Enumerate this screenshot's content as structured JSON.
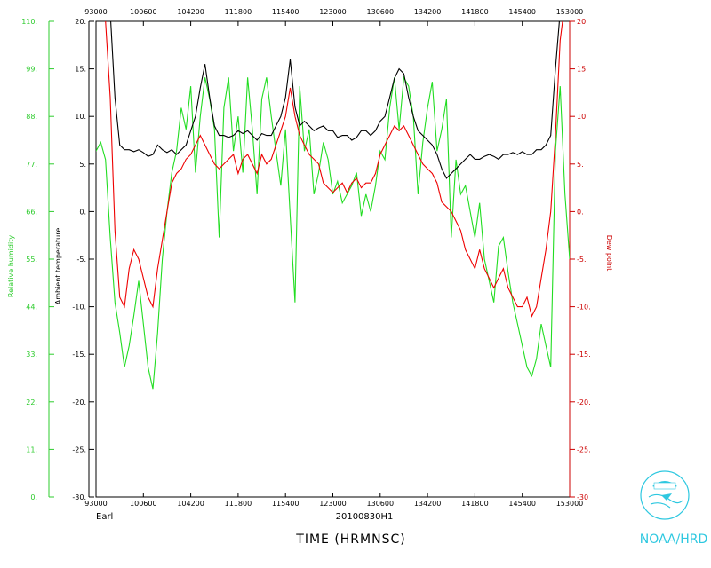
{
  "chart_data": {
    "type": "line",
    "x_axis": {
      "label": "TIME (HRMNSC)",
      "tick_labels": [
        "93000",
        "100600",
        "104200",
        "111800",
        "115400",
        "123000",
        "130600",
        "134200",
        "141800",
        "145400",
        "153000"
      ]
    },
    "y_axes": {
      "relative_humidity": {
        "label": "Relative humidity",
        "color": "#2ecc2e",
        "ylim": [
          0,
          110
        ],
        "tick_labels": [
          "0.",
          "11.",
          "22.",
          "33.",
          "44.",
          "55.",
          "66.",
          "77.",
          "88.",
          "99.",
          "110."
        ]
      },
      "ambient_temperature": {
        "label": "Ambient temperature",
        "color": "#000000",
        "ylim": [
          -30,
          20
        ],
        "tick_labels": [
          "-30.",
          "-25.",
          "-20.",
          "-15.",
          "-10.",
          "-5.",
          "0.",
          "5.",
          "10.",
          "15.",
          "20."
        ]
      },
      "dew_point": {
        "label": "Dew point",
        "color": "#cc0000",
        "ylim": [
          -30,
          20
        ],
        "tick_labels": [
          "-30",
          "-25.",
          "-20.",
          "-15.",
          "-10.",
          "-5.",
          "0.",
          "5.",
          "10.",
          "15.",
          "20."
        ]
      }
    },
    "series": [
      {
        "name": "Relative humidity",
        "color": "#22dd22",
        "axis": "relative_humidity",
        "x": [
          0,
          1,
          2,
          3,
          4,
          5,
          6,
          7,
          8,
          9,
          10,
          11,
          12,
          13,
          14,
          15,
          16,
          17,
          18,
          19,
          20,
          21,
          22,
          23,
          24,
          25,
          26,
          27,
          28,
          29,
          30,
          31,
          32,
          33,
          34,
          35,
          36,
          37,
          38,
          39,
          40,
          41,
          42,
          43,
          44,
          45,
          46,
          47,
          48,
          49,
          50,
          51,
          52,
          53,
          54,
          55,
          56,
          57,
          58,
          59,
          60,
          61,
          62,
          63,
          64,
          65,
          66,
          67,
          68,
          69,
          70,
          71,
          72,
          73,
          74,
          75,
          76,
          77,
          78,
          79,
          80,
          81,
          82,
          83,
          84,
          85,
          86,
          87,
          88,
          89,
          90,
          91,
          92,
          93,
          94,
          95,
          96,
          97,
          98,
          99,
          100
        ],
        "values": [
          80,
          82,
          78,
          60,
          45,
          38,
          30,
          35,
          42,
          50,
          40,
          30,
          25,
          38,
          55,
          66,
          75,
          80,
          90,
          85,
          95,
          75,
          88,
          97,
          92,
          85,
          60,
          90,
          97,
          80,
          88,
          75,
          97,
          85,
          70,
          92,
          97,
          88,
          80,
          72,
          85,
          65,
          45,
          95,
          80,
          85,
          70,
          75,
          82,
          78,
          70,
          73,
          68,
          70,
          72,
          75,
          65,
          70,
          66,
          72,
          80,
          78,
          90,
          97,
          85,
          97,
          95,
          88,
          70,
          82,
          90,
          96,
          80,
          85,
          92,
          60,
          78,
          70,
          72,
          66,
          60,
          68,
          55,
          50,
          45,
          58,
          60,
          52,
          45,
          40,
          35,
          30,
          28,
          32,
          40,
          35,
          30,
          80,
          95,
          70,
          55
        ]
      },
      {
        "name": "Ambient temperature",
        "color": "#000000",
        "axis": "ambient_temperature",
        "x": [
          0,
          1,
          2,
          3,
          4,
          5,
          6,
          7,
          8,
          9,
          10,
          11,
          12,
          13,
          14,
          15,
          16,
          17,
          18,
          19,
          20,
          21,
          22,
          23,
          24,
          25,
          26,
          27,
          28,
          29,
          30,
          31,
          32,
          33,
          34,
          35,
          36,
          37,
          38,
          39,
          40,
          41,
          42,
          43,
          44,
          45,
          46,
          47,
          48,
          49,
          50,
          51,
          52,
          53,
          54,
          55,
          56,
          57,
          58,
          59,
          60,
          61,
          62,
          63,
          64,
          65,
          66,
          67,
          68,
          69,
          70,
          71,
          72,
          73,
          74,
          75,
          76,
          77,
          78,
          79,
          80,
          81,
          82,
          83,
          84,
          85,
          86,
          87,
          88,
          89,
          90,
          91,
          92,
          93,
          94,
          95,
          96,
          97,
          98,
          99,
          100
        ],
        "values": [
          22,
          22,
          22,
          21,
          12,
          7,
          6.5,
          6.5,
          6.3,
          6.5,
          6.2,
          5.8,
          6,
          7,
          6.5,
          6.2,
          6.5,
          6,
          6.5,
          7,
          8.5,
          10,
          13,
          15.5,
          12,
          9,
          8,
          8,
          7.8,
          8,
          8.5,
          8.2,
          8.5,
          8,
          7.5,
          8.2,
          8,
          8,
          9,
          10,
          12,
          16,
          11,
          9,
          9.5,
          9,
          8.5,
          8.8,
          9,
          8.5,
          8.5,
          7.8,
          8,
          8,
          7.5,
          7.8,
          8.5,
          8.5,
          8,
          8.5,
          9.5,
          10,
          12,
          14,
          15,
          14.5,
          12,
          10,
          8.5,
          8,
          7.5,
          7,
          6,
          4.5,
          3.5,
          4,
          4.5,
          5,
          5.5,
          6,
          5.5,
          5.5,
          5.8,
          6,
          5.8,
          5.5,
          6,
          6,
          6.2,
          6,
          6.3,
          6,
          6,
          6.5,
          6.5,
          7,
          8,
          15,
          21,
          22,
          22
        ]
      },
      {
        "name": "Dew point",
        "color": "#ee0000",
        "axis": "dew_point",
        "x": [
          0,
          1,
          2,
          3,
          4,
          5,
          6,
          7,
          8,
          9,
          10,
          11,
          12,
          13,
          14,
          15,
          16,
          17,
          18,
          19,
          20,
          21,
          22,
          23,
          24,
          25,
          26,
          27,
          28,
          29,
          30,
          31,
          32,
          33,
          34,
          35,
          36,
          37,
          38,
          39,
          40,
          41,
          42,
          43,
          44,
          45,
          46,
          47,
          48,
          49,
          50,
          51,
          52,
          53,
          54,
          55,
          56,
          57,
          58,
          59,
          60,
          61,
          62,
          63,
          64,
          65,
          66,
          67,
          68,
          69,
          70,
          71,
          72,
          73,
          74,
          75,
          76,
          77,
          78,
          79,
          80,
          81,
          82,
          83,
          84,
          85,
          86,
          87,
          88,
          89,
          90,
          91,
          92,
          93,
          94,
          95,
          96,
          97,
          98,
          99,
          100
        ],
        "values": [
          22,
          22,
          20,
          12,
          -2,
          -9,
          -10,
          -6,
          -4,
          -5,
          -7,
          -9,
          -10,
          -6,
          -3,
          0,
          3,
          4,
          4.5,
          5.5,
          6,
          7,
          8,
          7,
          6,
          5,
          4.5,
          5,
          5.5,
          6,
          4,
          5.5,
          6,
          5,
          4,
          6,
          5,
          5.5,
          7,
          8.5,
          10,
          13,
          10,
          8,
          7,
          6,
          5.5,
          5,
          3,
          2.5,
          2,
          2.5,
          3,
          2,
          3,
          3.5,
          2.5,
          3,
          3,
          4,
          6,
          7,
          8,
          9,
          8.5,
          9,
          8,
          7,
          6,
          5,
          4.5,
          4,
          3,
          1,
          0.5,
          0,
          -1,
          -2,
          -4,
          -5,
          -6,
          -4,
          -6,
          -7,
          -8,
          -7,
          -6,
          -8,
          -9,
          -10,
          -10,
          -9,
          -11,
          -10,
          -7,
          -4,
          0,
          8,
          18,
          22,
          22
        ]
      }
    ],
    "annotations": {
      "storm_name": "Earl",
      "flight_id": "20100830H1",
      "agency": "NOAA/HRD"
    },
    "grid": false
  }
}
